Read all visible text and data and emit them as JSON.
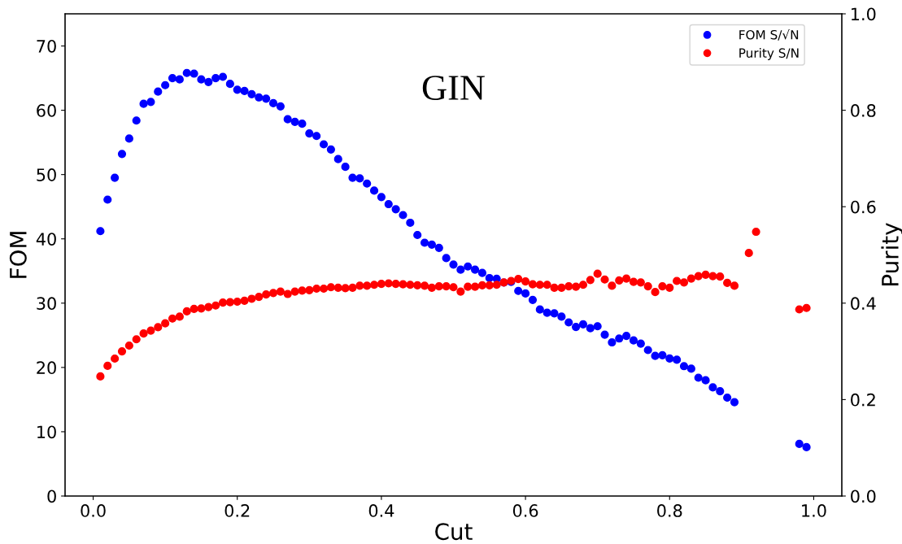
{
  "chart_data": {
    "type": "scatter",
    "xlabel": "Cut",
    "ylabel": "FOM",
    "y2label": "Purity",
    "annotations": [
      "GIN"
    ],
    "xlim": [
      -0.039,
      1.039
    ],
    "xticks": [
      {
        "value": 0,
        "label": "0.0"
      },
      0.2,
      0.4,
      0.6,
      0.8,
      {
        "value": 1,
        "label": "1.0"
      }
    ],
    "ylim": [
      0,
      75
    ],
    "yticks": [
      0,
      10,
      20,
      30,
      40,
      50,
      60,
      70
    ],
    "y2lim": [
      0,
      1
    ],
    "y2ticks": [
      {
        "value": 0,
        "label": "0.0"
      },
      0.2,
      0.4,
      0.6,
      0.8,
      {
        "value": 1,
        "label": "1.0"
      }
    ],
    "grid": false,
    "legend": "top right",
    "marker": "circle",
    "series": [
      {
        "name": "FOM S/√N",
        "color": "#0000ff",
        "x": [
          0.01,
          0.02,
          0.03,
          0.04,
          0.05,
          0.06,
          0.07,
          0.08,
          0.09,
          0.1,
          0.11,
          0.12,
          0.13,
          0.14,
          0.15,
          0.16,
          0.17,
          0.18,
          0.19,
          0.2,
          0.21,
          0.22,
          0.23,
          0.24,
          0.25,
          0.26,
          0.27,
          0.28,
          0.29,
          0.3,
          0.31,
          0.32,
          0.33,
          0.34,
          0.35,
          0.36,
          0.37,
          0.38,
          0.39,
          0.4,
          0.41,
          0.42,
          0.43,
          0.44,
          0.45,
          0.46,
          0.47,
          0.48,
          0.49,
          0.5,
          0.51,
          0.52,
          0.53,
          0.54,
          0.55,
          0.56,
          0.57,
          0.58,
          0.59,
          0.6,
          0.61,
          0.62,
          0.63,
          0.64,
          0.65,
          0.66,
          0.67,
          0.68,
          0.69,
          0.7,
          0.71,
          0.72,
          0.73,
          0.74,
          0.75,
          0.76,
          0.77,
          0.78,
          0.79,
          0.8,
          0.81,
          0.82,
          0.83,
          0.84,
          0.85,
          0.86,
          0.87,
          0.88,
          0.89,
          0.98,
          0.99
        ],
        "values": [
          41.2,
          46.1,
          49.5,
          53.2,
          55.6,
          58.4,
          61.0,
          61.3,
          62.9,
          63.9,
          65.0,
          64.8,
          65.8,
          65.7,
          64.8,
          64.4,
          65.0,
          65.2,
          64.1,
          63.2,
          63.0,
          62.5,
          62.0,
          61.8,
          61.1,
          60.6,
          58.6,
          58.2,
          57.9,
          56.4,
          56.0,
          54.7,
          53.9,
          52.4,
          51.2,
          49.5,
          49.4,
          48.6,
          47.5,
          46.5,
          45.4,
          44.6,
          43.7,
          42.5,
          40.6,
          39.4,
          39.1,
          38.6,
          37.0,
          36.0,
          35.2,
          35.7,
          35.2,
          34.7,
          33.9,
          33.8,
          33.2,
          33.3,
          31.9,
          31.5,
          30.5,
          29.0,
          28.5,
          28.4,
          27.9,
          27.0,
          26.3,
          26.7,
          26.1,
          26.4,
          25.1,
          23.9,
          24.5,
          24.9,
          24.2,
          23.7,
          22.7,
          21.8,
          21.9,
          21.4,
          21.2,
          20.2,
          19.8,
          18.4,
          18.0,
          16.9,
          16.3,
          15.3,
          14.6,
          8.1,
          7.6
        ]
      },
      {
        "name": "Purity S/N",
        "color": "#ff0000",
        "axis": "y2",
        "x": [
          0.01,
          0.02,
          0.03,
          0.04,
          0.05,
          0.06,
          0.07,
          0.08,
          0.09,
          0.1,
          0.11,
          0.12,
          0.13,
          0.14,
          0.15,
          0.16,
          0.17,
          0.18,
          0.19,
          0.2,
          0.21,
          0.22,
          0.23,
          0.24,
          0.25,
          0.26,
          0.27,
          0.28,
          0.29,
          0.3,
          0.31,
          0.32,
          0.33,
          0.34,
          0.35,
          0.36,
          0.37,
          0.38,
          0.39,
          0.4,
          0.41,
          0.42,
          0.43,
          0.44,
          0.45,
          0.46,
          0.47,
          0.48,
          0.49,
          0.5,
          0.51,
          0.52,
          0.53,
          0.54,
          0.55,
          0.56,
          0.57,
          0.58,
          0.59,
          0.6,
          0.61,
          0.62,
          0.63,
          0.64,
          0.65,
          0.66,
          0.67,
          0.68,
          0.69,
          0.7,
          0.71,
          0.72,
          0.73,
          0.74,
          0.75,
          0.76,
          0.77,
          0.78,
          0.79,
          0.8,
          0.81,
          0.82,
          0.83,
          0.84,
          0.85,
          0.86,
          0.87,
          0.88,
          0.89,
          0.91,
          0.92,
          0.98,
          0.99
        ],
        "values": [
          0.248,
          0.27,
          0.285,
          0.3,
          0.312,
          0.325,
          0.337,
          0.343,
          0.35,
          0.358,
          0.368,
          0.372,
          0.383,
          0.388,
          0.389,
          0.392,
          0.395,
          0.401,
          0.402,
          0.403,
          0.405,
          0.409,
          0.413,
          0.418,
          0.421,
          0.424,
          0.419,
          0.424,
          0.426,
          0.427,
          0.43,
          0.43,
          0.433,
          0.432,
          0.431,
          0.432,
          0.436,
          0.436,
          0.438,
          0.44,
          0.441,
          0.44,
          0.439,
          0.438,
          0.437,
          0.436,
          0.432,
          0.435,
          0.435,
          0.433,
          0.424,
          0.434,
          0.434,
          0.437,
          0.437,
          0.438,
          0.443,
          0.446,
          0.45,
          0.445,
          0.439,
          0.438,
          0.438,
          0.432,
          0.432,
          0.435,
          0.434,
          0.438,
          0.448,
          0.461,
          0.449,
          0.436,
          0.447,
          0.451,
          0.444,
          0.443,
          0.435,
          0.423,
          0.435,
          0.432,
          0.446,
          0.443,
          0.451,
          0.456,
          0.459,
          0.456,
          0.455,
          0.442,
          0.436,
          0.504,
          0.548,
          0.387,
          0.39
        ]
      }
    ]
  }
}
